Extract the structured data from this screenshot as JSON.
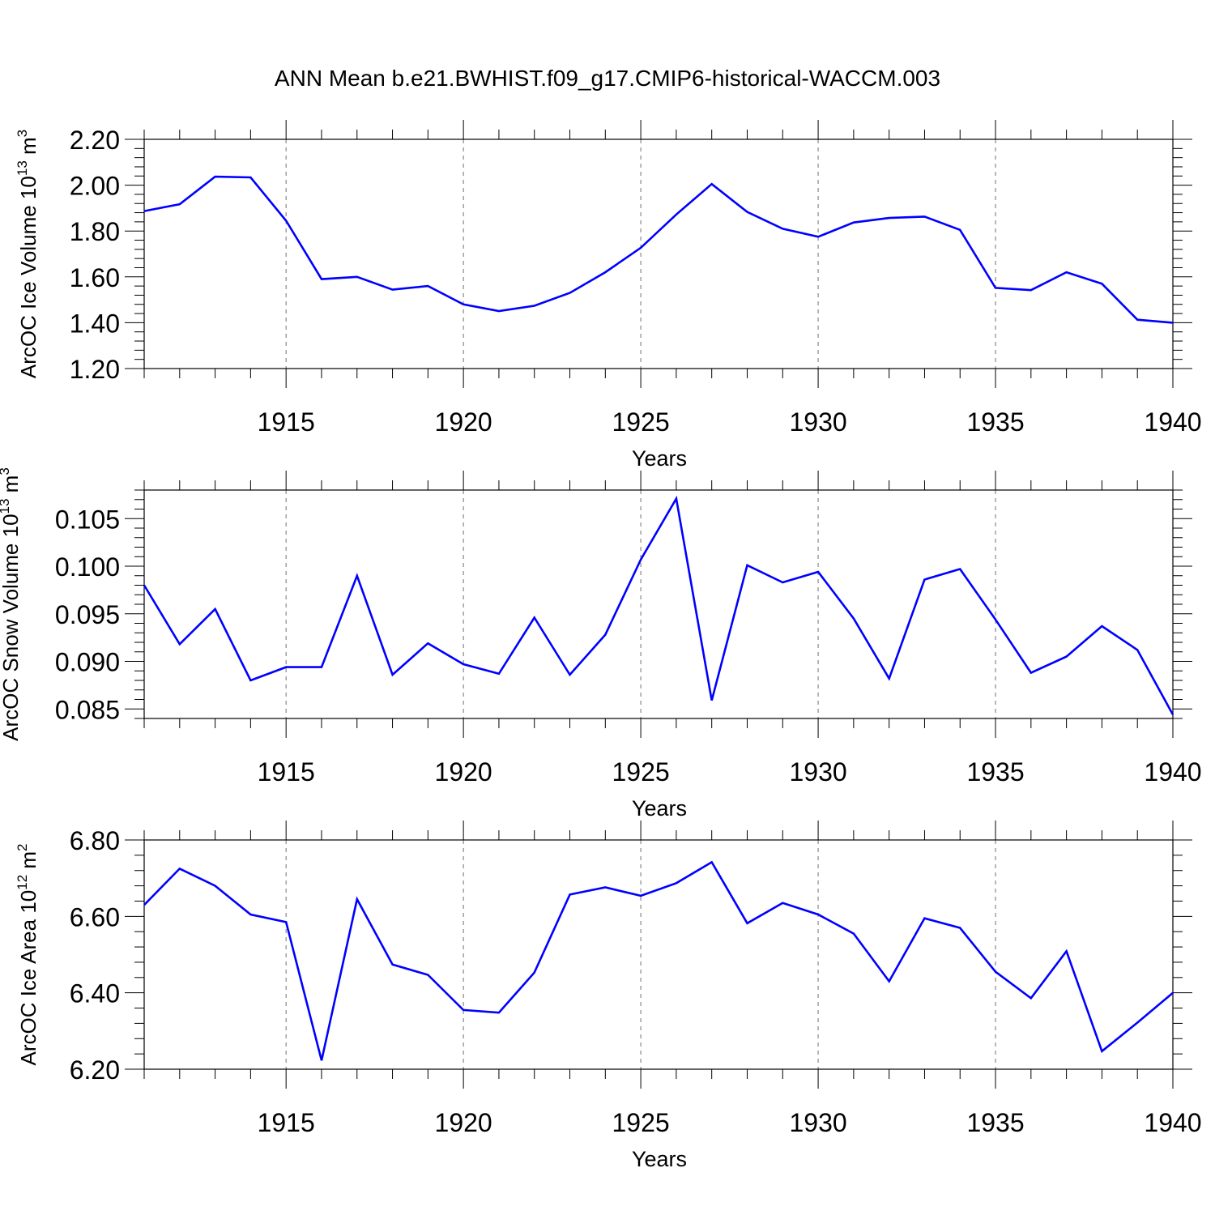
{
  "title": "ANN Mean b.e21.BWHIST.f09_g17.CMIP6-historical-WACCM.003",
  "chart_data": [
    {
      "type": "line",
      "ylabel": "ArcOC Ice Volume 10",
      "ylabel_exp": "13",
      "ylabel_unit": " m",
      "ylabel_unit_exp": "3",
      "xlabel": "Years",
      "xlim": [
        1911,
        1940
      ],
      "ylim": [
        1.2,
        2.2
      ],
      "yticks": [
        1.2,
        1.4,
        1.6,
        1.8,
        2.0,
        2.2
      ],
      "ytick_labels": [
        "1.20",
        "1.40",
        "1.60",
        "1.80",
        "2.00",
        "2.20"
      ],
      "xticks": [
        1915,
        1920,
        1925,
        1930,
        1935,
        1940
      ],
      "xtick_labels": [
        "1915",
        "1920",
        "1925",
        "1930",
        "1935",
        "1940"
      ],
      "grid": "vertical dashed at major x ticks",
      "color": "#0000ff",
      "x": [
        1911,
        1912,
        1913,
        1914,
        1915,
        1916,
        1917,
        1918,
        1919,
        1920,
        1921,
        1922,
        1923,
        1924,
        1925,
        1926,
        1927,
        1928,
        1929,
        1930,
        1931,
        1932,
        1933,
        1934,
        1935,
        1936,
        1937,
        1938,
        1939,
        1940
      ],
      "y": [
        1.887,
        1.917,
        2.037,
        2.034,
        1.845,
        1.59,
        1.6,
        1.544,
        1.56,
        1.48,
        1.451,
        1.474,
        1.53,
        1.62,
        1.727,
        1.872,
        2.005,
        1.883,
        1.81,
        1.775,
        1.837,
        1.857,
        1.863,
        1.805,
        1.552,
        1.542,
        1.62,
        1.57,
        1.413,
        1.4
      ]
    },
    {
      "type": "line",
      "ylabel": "ArcOC Snow Volume 10",
      "ylabel_exp": "13",
      "ylabel_unit": " m",
      "ylabel_unit_exp": "3",
      "xlabel": "Years",
      "xlim": [
        1911,
        1940
      ],
      "ylim": [
        0.084,
        0.108
      ],
      "yticks": [
        0.085,
        0.09,
        0.095,
        0.1,
        0.105
      ],
      "ytick_labels": [
        "0.085",
        "0.090",
        "0.095",
        "0.100",
        "0.105"
      ],
      "xticks": [
        1915,
        1920,
        1925,
        1930,
        1935,
        1940
      ],
      "xtick_labels": [
        "1915",
        "1920",
        "1925",
        "1930",
        "1935",
        "1940"
      ],
      "grid": "vertical dashed at major x ticks",
      "color": "#0000ff",
      "x": [
        1911,
        1912,
        1913,
        1914,
        1915,
        1916,
        1917,
        1918,
        1919,
        1920,
        1921,
        1922,
        1923,
        1924,
        1925,
        1926,
        1927,
        1928,
        1929,
        1930,
        1931,
        1932,
        1933,
        1934,
        1935,
        1936,
        1937,
        1938,
        1939,
        1940
      ],
      "y": [
        0.098,
        0.0918,
        0.0955,
        0.088,
        0.0894,
        0.0894,
        0.099,
        0.0886,
        0.0919,
        0.0897,
        0.0887,
        0.0946,
        0.0886,
        0.0928,
        0.1007,
        0.1071,
        0.0859,
        0.1001,
        0.0983,
        0.0994,
        0.0945,
        0.0882,
        0.0986,
        0.0997,
        0.0944,
        0.0888,
        0.0905,
        0.0937,
        0.0912,
        0.0844
      ]
    },
    {
      "type": "line",
      "ylabel": "ArcOC Ice Area 10",
      "ylabel_exp": "12",
      "ylabel_unit": " m",
      "ylabel_unit_exp": "2",
      "xlabel": "Years",
      "xlim": [
        1911,
        1940
      ],
      "ylim": [
        6.2,
        6.8
      ],
      "yticks": [
        6.2,
        6.4,
        6.6,
        6.8
      ],
      "ytick_labels": [
        "6.20",
        "6.40",
        "6.60",
        "6.80"
      ],
      "xticks": [
        1915,
        1920,
        1925,
        1930,
        1935,
        1940
      ],
      "xtick_labels": [
        "1915",
        "1920",
        "1925",
        "1930",
        "1935",
        "1940"
      ],
      "grid": "vertical dashed at major x ticks",
      "color": "#0000ff",
      "x": [
        1911,
        1912,
        1913,
        1914,
        1915,
        1916,
        1917,
        1918,
        1919,
        1920,
        1921,
        1922,
        1923,
        1924,
        1925,
        1926,
        1927,
        1928,
        1929,
        1930,
        1931,
        1932,
        1933,
        1934,
        1935,
        1936,
        1937,
        1938,
        1939,
        1940
      ],
      "y": [
        6.63,
        6.725,
        6.68,
        6.605,
        6.585,
        6.223,
        6.645,
        6.474,
        6.447,
        6.355,
        6.348,
        6.453,
        6.657,
        6.676,
        6.654,
        6.687,
        6.742,
        6.582,
        6.635,
        6.605,
        6.555,
        6.43,
        6.595,
        6.57,
        6.455,
        6.386,
        6.509,
        6.247,
        6.322,
        6.4
      ]
    }
  ]
}
